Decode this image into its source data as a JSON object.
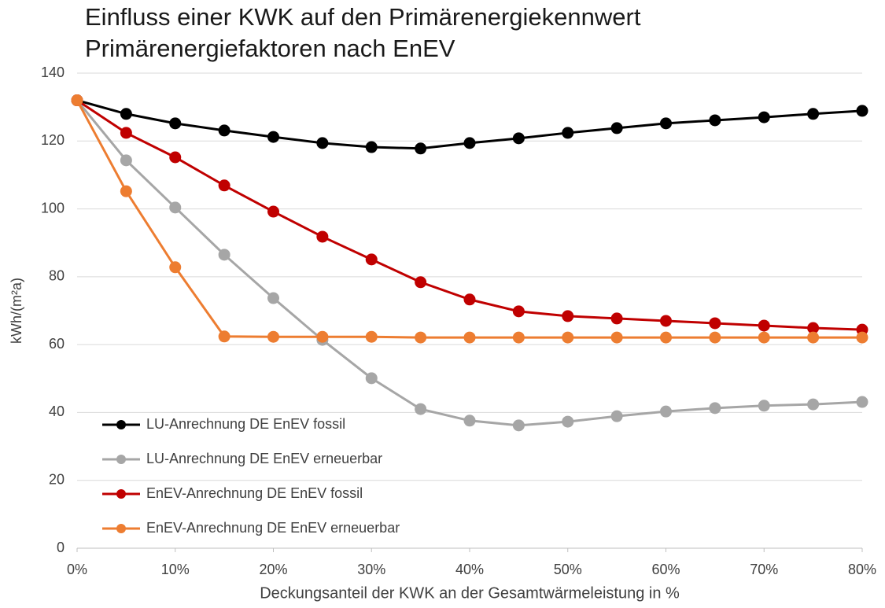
{
  "chart_data": {
    "type": "line",
    "title": "Einfluss einer KWK auf den Primärenergiekennwert",
    "subtitle": "Primärenergiefaktoren nach EnEV",
    "x_label": "Deckungsanteil der KWK an der Gesamtwärmeleistung in %",
    "y_label": "kWh/(m²a)",
    "x": [
      0,
      5,
      10,
      15,
      20,
      25,
      30,
      35,
      40,
      45,
      50,
      55,
      60,
      65,
      70,
      75,
      80
    ],
    "series": [
      {
        "name": "LU-Anrechnung DE EnEV fossil",
        "color": "#000000",
        "values": [
          132,
          128,
          125.2,
          123.1,
          121.2,
          119.4,
          118.2,
          117.8,
          119.4,
          120.8,
          122.4,
          123.8,
          125.2,
          126.1,
          127,
          128,
          128.9
        ]
      },
      {
        "name": "LU-Anrechnung DE EnEV erneuerbar",
        "color": "#a6a6a6",
        "values": [
          132,
          114.3,
          100.4,
          86.5,
          73.7,
          61.4,
          50.1,
          41,
          37.6,
          36.2,
          37.3,
          38.9,
          40.3,
          41.3,
          42,
          42.4,
          43.1
        ]
      },
      {
        "name": "EnEV-Anrechnung DE EnEV fossil",
        "color": "#c00000",
        "values": [
          132,
          122.4,
          115.2,
          106.9,
          99.2,
          91.8,
          85.1,
          78.4,
          73.3,
          69.8,
          68.4,
          67.7,
          67,
          66.3,
          65.6,
          64.9,
          64.4
        ]
      },
      {
        "name": "EnEV-Anrechnung DE EnEV erneuerbar",
        "color": "#ed7d31",
        "values": [
          132,
          105.2,
          82.8,
          62.4,
          62.3,
          62.3,
          62.3,
          62.1,
          62.1,
          62.1,
          62.1,
          62.1,
          62.1,
          62.1,
          62.1,
          62.1,
          62.1
        ]
      }
    ],
    "xlim": [
      0,
      80
    ],
    "xticks": [
      {
        "value": 0,
        "label": "0%"
      },
      {
        "value": 10,
        "label": "10%"
      },
      {
        "value": 20,
        "label": "20%"
      },
      {
        "value": 30,
        "label": "30%"
      },
      {
        "value": 40,
        "label": "40%"
      },
      {
        "value": 50,
        "label": "50%"
      },
      {
        "value": 60,
        "label": "60%"
      },
      {
        "value": 70,
        "label": "70%"
      },
      {
        "value": 80,
        "label": "80%"
      }
    ],
    "ylim": [
      0,
      140
    ],
    "yticks": [
      0,
      20,
      40,
      60,
      80,
      100,
      120,
      140
    ],
    "grid": true,
    "legend": "lower left"
  }
}
